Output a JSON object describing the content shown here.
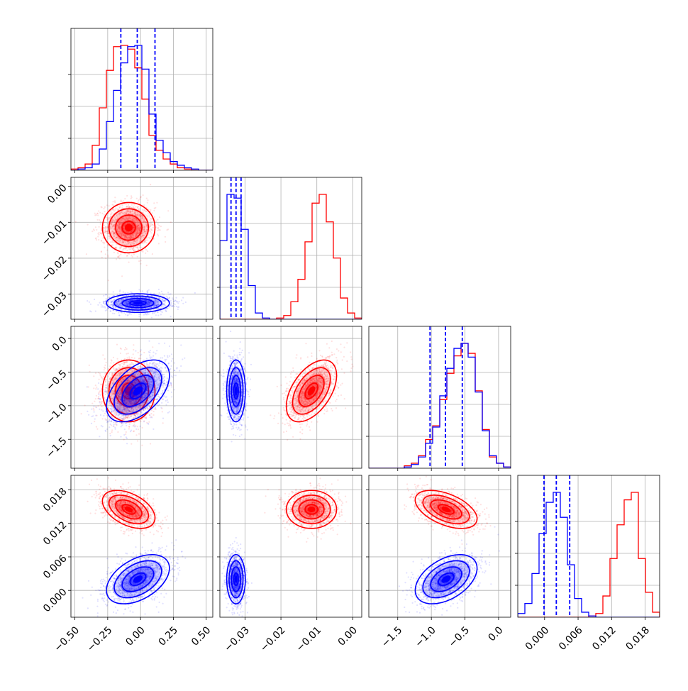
{
  "colors": {
    "red": "#ff0000",
    "blue": "#0000ff",
    "grid": "#b0b0b0",
    "frame": "#000000"
  },
  "chart_data": {
    "type": "corner",
    "grid": true,
    "legend": "none",
    "parameters": [
      {
        "ticks": [
          -0.5,
          -0.25,
          0.0,
          0.25,
          0.5
        ],
        "tick_labels": [
          "−0.50",
          "−0.25",
          "0.00",
          "0.25",
          "0.50"
        ],
        "range": [
          -0.53,
          0.55
        ]
      },
      {
        "ticks": [
          -0.03,
          -0.02,
          -0.01,
          0.0
        ],
        "tick_labels": [
          "−0.03",
          "−0.02",
          "−0.01",
          "0.00"
        ],
        "range": [
          -0.037,
          0.0025
        ]
      },
      {
        "ticks": [
          -1.5,
          -1.0,
          -0.5,
          0.0
        ],
        "tick_labels": [
          "−1.5",
          "−1.0",
          "−0.5",
          "0.0"
        ],
        "range": [
          -1.93,
          0.18
        ]
      },
      {
        "ticks": [
          0.0,
          0.006,
          0.012,
          0.018
        ],
        "tick_labels": [
          "0.000",
          "0.006",
          "0.012",
          "0.018"
        ],
        "range": [
          -0.0048,
          0.0206
        ]
      }
    ],
    "series": [
      {
        "color": "red",
        "means": [
          -0.09,
          -0.0115,
          -0.78,
          0.0145
        ],
        "sds": [
          0.1,
          0.0035,
          0.23,
          0.0017
        ],
        "corr": [
          [
            1,
            0,
            0,
            -0.45
          ],
          [
            0,
            1,
            0.5,
            0
          ],
          [
            0,
            0.5,
            1,
            -0.5
          ],
          [
            -0.45,
            0,
            -0.5,
            1
          ]
        ],
        "hist_heights": [
          [
            0.01,
            0.02,
            0.05,
            0.2,
            0.5,
            0.8,
            0.99,
            1.0,
            0.97,
            0.82,
            0.57,
            0.28,
            0.16,
            0.09,
            0.05,
            0.02,
            0.01,
            0.0,
            0.0,
            0.0
          ],
          [
            0.0,
            0.0,
            0.0,
            0.0,
            0.0,
            0.0,
            0.0,
            0.0,
            0.01,
            0.03,
            0.14,
            0.32,
            0.62,
            0.93,
            1.0,
            0.78,
            0.49,
            0.17,
            0.05,
            0.01
          ],
          [
            0.0,
            0.0,
            0.0,
            0.0,
            0.0,
            0.02,
            0.04,
            0.1,
            0.23,
            0.34,
            0.55,
            0.76,
            0.9,
            1.0,
            0.92,
            0.62,
            0.31,
            0.09,
            0.04,
            0.01
          ],
          [
            0.0,
            0.0,
            0.0,
            0.0,
            0.0,
            0.0,
            0.0,
            0.0,
            0.0,
            0.0,
            0.01,
            0.03,
            0.17,
            0.47,
            0.74,
            0.94,
            1.0,
            0.47,
            0.2,
            0.04
          ]
        ]
      },
      {
        "color": "blue",
        "means": [
          -0.02,
          -0.0325,
          -0.78,
          0.002
        ],
        "sds": [
          0.12,
          0.0013,
          0.23,
          0.0022
        ],
        "corr": [
          [
            1,
            0,
            0.5,
            0.45
          ],
          [
            0,
            1,
            0,
            0
          ],
          [
            0.5,
            0,
            1,
            0.45
          ],
          [
            0.45,
            0,
            0.45,
            1
          ]
        ],
        "hist_heights": [
          [
            0.0,
            0.01,
            0.02,
            0.05,
            0.17,
            0.39,
            0.64,
            0.86,
            0.99,
            1.0,
            0.81,
            0.45,
            0.24,
            0.14,
            0.07,
            0.04,
            0.02,
            0.01,
            0.0,
            0.0
          ],
          [
            0.63,
            1.0,
            0.97,
            0.72,
            0.27,
            0.05,
            0.01,
            0.0,
            0.0,
            0.0,
            0.0,
            0.0,
            0.0,
            0.0,
            0.0,
            0.0,
            0.0,
            0.0,
            0.0,
            0.0
          ],
          [
            0.0,
            0.0,
            0.0,
            0.0,
            0.0,
            0.01,
            0.03,
            0.09,
            0.2,
            0.33,
            0.58,
            0.8,
            0.96,
            1.0,
            0.89,
            0.61,
            0.3,
            0.1,
            0.04,
            0.01
          ],
          [
            0.03,
            0.11,
            0.35,
            0.67,
            0.92,
            1.0,
            0.8,
            0.42,
            0.15,
            0.04,
            0.01,
            0.0,
            0.0,
            0.0,
            0.0,
            0.0,
            0.0,
            0.0,
            0.0,
            0.0
          ]
        ]
      }
    ],
    "quantile_lines": {
      "color": "blue",
      "values": [
        [
          -0.15,
          -0.025,
          0.11
        ],
        [
          -0.0339,
          -0.0325,
          -0.0311
        ],
        [
          -1.02,
          -0.79,
          -0.54
        ],
        [
          -0.0001,
          0.0021,
          0.0045
        ]
      ]
    },
    "contour_levels_sigma": [
      0.5,
      1.0,
      1.5,
      2.0
    ]
  }
}
